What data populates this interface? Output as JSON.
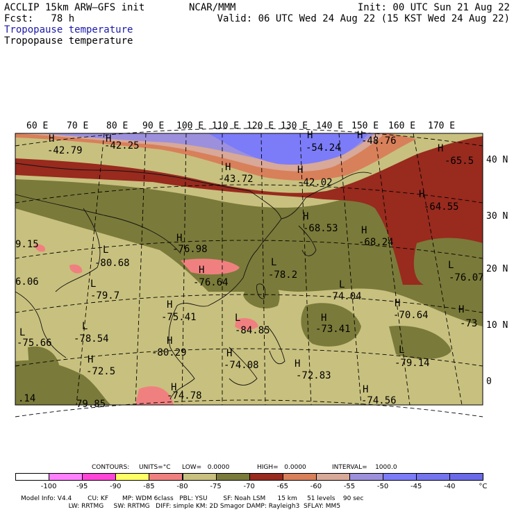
{
  "header": {
    "left_line1": "ACCLIP 15km ARW–GFS init",
    "left_line2": "Fcst:   78 h",
    "center_line1": "NCAR/MMM",
    "right_line1": "Init: 00 UTC Sun 21 Aug 22",
    "right_line2": "Valid: 06 UTC Wed 24 Aug 22 (15 KST Wed 24 Aug 22)",
    "field_title_blue": "Tropopause temperature",
    "field_title_black": "Tropopause temperature"
  },
  "map": {
    "lon_labels": [
      "60 E",
      "70 E",
      "80 E",
      "90 E",
      "100 E",
      "110 E",
      "120 E",
      "130 E",
      "140 E",
      "150 E",
      "160 E",
      "170 E"
    ],
    "lat_labels": [
      "40 N",
      "30 N",
      "20 N",
      "10 N",
      "0"
    ],
    "extrema": [
      {
        "mark": "H",
        "value": "-42.79"
      },
      {
        "mark": "H",
        "value": "-42.25"
      },
      {
        "mark": "H",
        "value": "-54.24"
      },
      {
        "mark": "H",
        "value": "-48.76"
      },
      {
        "mark": "H",
        "value": "-43.72"
      },
      {
        "mark": "H",
        "value": "-42.02"
      },
      {
        "mark": "H",
        "value": "-65.5"
      },
      {
        "mark": "H",
        "value": "-64.55"
      },
      {
        "mark": "H",
        "value": "-68.53"
      },
      {
        "mark": "H",
        "value": "-68.24"
      },
      {
        "mark": "H",
        "value": "-76.98"
      },
      {
        "mark": "L",
        "value": "-80.68"
      },
      {
        "mark": "H",
        "value": "-76.64"
      },
      {
        "mark": "L",
        "value": "-78.2"
      },
      {
        "mark": "L",
        "value": "-79.7"
      },
      {
        "mark": "L",
        "value": "-74.04"
      },
      {
        "mark": "L",
        "value": "-76.07"
      },
      {
        "mark": "H",
        "value": "-75.41"
      },
      {
        "mark": "H",
        "value": "-70.64"
      },
      {
        "mark": "L",
        "value": "-84.85"
      },
      {
        "mark": "H",
        "value": "-73.41"
      },
      {
        "mark": "H",
        "value": "-73"
      },
      {
        "mark": "L",
        "value": "-78.54"
      },
      {
        "mark": "L",
        "value": "-75.66"
      },
      {
        "mark": "H",
        "value": "-80.29"
      },
      {
        "mark": "H",
        "value": "-74.08"
      },
      {
        "mark": "H",
        "value": "-72.83"
      },
      {
        "mark": "L",
        "value": "-79.14"
      },
      {
        "mark": "H",
        "value": "-72.5"
      },
      {
        "mark": "H",
        "value": "-74.78"
      },
      {
        "mark": "H",
        "value": "-74.56"
      },
      {
        "mark": "",
        "value": "9.15"
      },
      {
        "mark": "",
        "value": "6.06"
      },
      {
        "mark": "",
        "value": ".14"
      },
      {
        "mark": "",
        "value": "79.85"
      }
    ]
  },
  "contours_line": {
    "label": "CONTOURS:",
    "units": "UNITS=°C",
    "low": "LOW=   0.0000",
    "high": "HIGH=   0.0000",
    "interval": "INTERVAL=    1000.0"
  },
  "colorbar": {
    "colors": [
      "#ffffff",
      "#ff80ff",
      "#ff44d8",
      "#ffff66",
      "#f08080",
      "#c8c07e",
      "#7a7a3a",
      "#982a1e",
      "#d8805a",
      "#d8a898",
      "#9c90dc",
      "#7c7cf8",
      "#7474ee",
      "#6a6ae8"
    ],
    "labels": [
      "-100",
      "-95",
      "-90",
      "-85",
      "-80",
      "-75",
      "-70",
      "-65",
      "-60",
      "-55",
      "-50",
      "-45",
      "-40",
      "°C"
    ]
  },
  "footer": {
    "line1": "Model Info: V4.4        CU: KF       MP: WDM 6class   PBL: YSU        SF: Noah LSM      15 km     51 levels    90 sec",
    "line2": "                        LW: RRTMG     SW: RRTMG   DIFF: simple KM: 2D Smagor DAMP: Rayleigh3  SFLAY: MM5"
  }
}
